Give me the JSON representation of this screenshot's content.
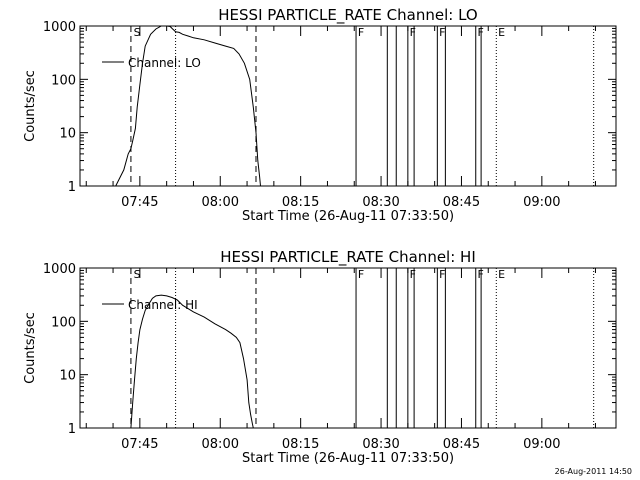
{
  "chart_data": [
    {
      "type": "line",
      "title": "HESSI PARTICLE_RATE Channel: LO",
      "xlabel": "Start Time (26-Aug-11 07:33:50)",
      "ylabel": "Counts/sec",
      "x_ticks": [
        "07:45",
        "08:00",
        "08:15",
        "08:30",
        "08:45",
        "09:00"
      ],
      "xlim": [
        "07:33:50",
        "09:13:50"
      ],
      "y_scale": "log",
      "y_ticks": [
        "1",
        "10",
        "100",
        "1000"
      ],
      "ylim": [
        1,
        1000
      ],
      "grid": false,
      "legend": "upper-left",
      "series": [
        {
          "name": "Channel: LO",
          "x": [
            "07:40:30",
            "07:42:00",
            "07:42:50",
            "07:43:20",
            "07:43:40",
            "07:44:10",
            "07:44:30",
            "07:45:00",
            "07:45:30",
            "07:46:00",
            "07:47:00",
            "07:48:00",
            "07:49:00",
            "07:50:00",
            "07:50:40",
            "07:51:00",
            "07:51:40",
            "07:52:20",
            "07:53:00",
            "07:54:00",
            "07:55:00",
            "07:57:00",
            "07:59:00",
            "08:01:00",
            "08:02:30",
            "08:03:30",
            "08:04:30",
            "08:05:30",
            "08:06:10",
            "08:06:40",
            "08:07:00",
            "08:07:20",
            "08:07:30"
          ],
          "values": [
            1,
            2,
            4,
            5,
            7,
            12,
            30,
            80,
            200,
            420,
            700,
            880,
            1000,
            1000,
            980,
            900,
            780,
            760,
            700,
            650,
            600,
            550,
            480,
            420,
            380,
            300,
            200,
            100,
            30,
            10,
            3,
            1.5,
            1
          ]
        }
      ],
      "markers": {
        "dashed": [
          "07:43:20",
          "08:06:40"
        ],
        "dotted": [
          "07:51:40",
          "08:51:30",
          "09:09:40"
        ],
        "solid": [
          "08:25:20",
          "08:31:10",
          "08:32:50",
          "08:35:00",
          "08:36:10",
          "08:40:30",
          "08:42:00",
          "08:47:40",
          "08:48:40"
        ],
        "letters": [
          {
            "t": "07:43:50",
            "label": "S"
          },
          {
            "t": "08:25:40",
            "label": "F"
          },
          {
            "t": "08:35:20",
            "label": "F"
          },
          {
            "t": "08:40:50",
            "label": "F"
          },
          {
            "t": "08:48:00",
            "label": "F"
          },
          {
            "t": "08:51:50",
            "label": "E"
          }
        ]
      }
    },
    {
      "type": "line",
      "title": "HESSI PARTICLE_RATE Channel: HI",
      "xlabel": "Start Time (26-Aug-11 07:33:50)",
      "ylabel": "Counts/sec",
      "x_ticks": [
        "07:45",
        "08:00",
        "08:15",
        "08:30",
        "08:45",
        "09:00"
      ],
      "xlim": [
        "07:33:50",
        "09:13:50"
      ],
      "y_scale": "log",
      "y_ticks": [
        "1",
        "10",
        "100",
        "1000"
      ],
      "ylim": [
        1,
        1000
      ],
      "grid": false,
      "legend": "upper-left",
      "series": [
        {
          "name": "Channel: HI",
          "x": [
            "07:43:20",
            "07:43:40",
            "07:44:00",
            "07:44:20",
            "07:44:40",
            "07:45:00",
            "07:45:30",
            "07:46:00",
            "07:46:40",
            "07:47:20",
            "07:48:00",
            "07:49:00",
            "07:50:00",
            "07:51:00",
            "07:52:00",
            "07:53:00",
            "07:55:00",
            "07:57:00",
            "07:59:00",
            "08:01:00",
            "08:02:00",
            "08:03:00",
            "08:03:40",
            "08:04:20",
            "08:05:00",
            "08:05:20",
            "08:05:40",
            "08:06:00",
            "08:06:10"
          ],
          "values": [
            1,
            3,
            8,
            20,
            40,
            70,
            110,
            160,
            210,
            270,
            300,
            310,
            300,
            280,
            250,
            200,
            150,
            120,
            90,
            70,
            60,
            50,
            40,
            20,
            8,
            3,
            1.8,
            1.2,
            1
          ]
        }
      ],
      "markers": {
        "dashed": [
          "07:43:20",
          "08:06:40"
        ],
        "dotted": [
          "07:51:40",
          "08:51:30",
          "09:09:40"
        ],
        "solid": [
          "08:25:20",
          "08:31:10",
          "08:32:50",
          "08:35:00",
          "08:36:10",
          "08:40:30",
          "08:42:00",
          "08:47:40",
          "08:48:40"
        ],
        "letters": [
          {
            "t": "07:43:50",
            "label": "S"
          },
          {
            "t": "08:25:40",
            "label": "F"
          },
          {
            "t": "08:35:20",
            "label": "F"
          },
          {
            "t": "08:40:50",
            "label": "F"
          },
          {
            "t": "08:48:00",
            "label": "F"
          },
          {
            "t": "08:51:50",
            "label": "E"
          }
        ]
      }
    }
  ],
  "footer": {
    "timestamp": "26-Aug-2011 14:50"
  }
}
